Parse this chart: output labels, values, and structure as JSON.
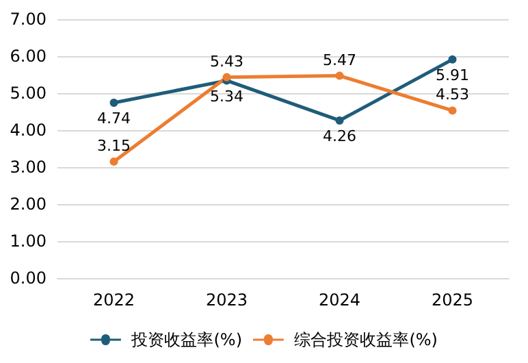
{
  "chart_data": {
    "type": "line",
    "categories": [
      "2022",
      "2023",
      "2024",
      "2025"
    ],
    "series": [
      {
        "name": "投资收益率(%)",
        "color": "#1f5c7a",
        "values": [
          4.74,
          5.34,
          4.26,
          5.91
        ]
      },
      {
        "name": "综合投资收益率(%)",
        "color": "#ed7d31",
        "values": [
          3.15,
          5.43,
          5.47,
          4.53
        ]
      }
    ],
    "ylim": [
      0,
      7
    ],
    "yticks": [
      {
        "value": 0,
        "label": "0.00"
      },
      {
        "value": 1,
        "label": "1.00"
      },
      {
        "value": 2,
        "label": "2.00"
      },
      {
        "value": 3,
        "label": "3.00"
      },
      {
        "value": 4,
        "label": "4.00"
      },
      {
        "value": 5,
        "label": "5.00"
      },
      {
        "value": 6,
        "label": "6.00"
      },
      {
        "value": 7,
        "label": "7.00"
      }
    ],
    "grid": "y",
    "legend": "bottom",
    "marker": "circle",
    "line_style": "solid",
    "data_labels": true
  }
}
